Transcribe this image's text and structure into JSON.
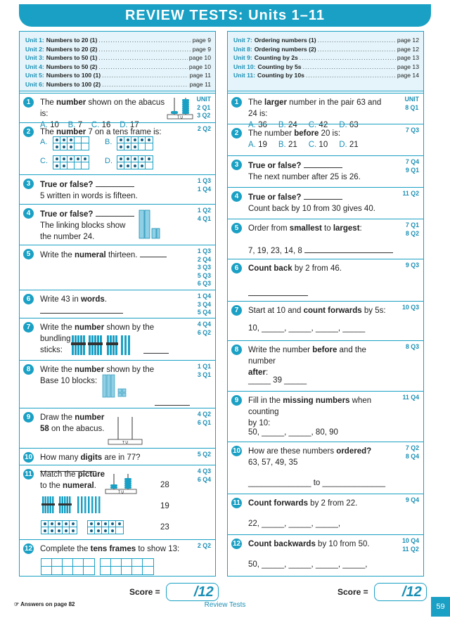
{
  "title": "REVIEW TESTS: Units 1–11",
  "toc_left": [
    {
      "unit": "Unit 1:",
      "name": "Numbers to 20 (1)",
      "page": "page 9"
    },
    {
      "unit": "Unit 2:",
      "name": "Numbers to 20 (2)",
      "page": "page 9"
    },
    {
      "unit": "Unit 3:",
      "name": "Numbers to 50 (1)",
      "page": "page 10"
    },
    {
      "unit": "Unit 4:",
      "name": "Numbers to 50 (2)",
      "page": "page 10"
    },
    {
      "unit": "Unit 5:",
      "name": "Numbers to 100 (1)",
      "page": "page 11"
    },
    {
      "unit": "Unit 6:",
      "name": "Numbers to 100 (2)",
      "page": "page 11"
    }
  ],
  "toc_right": [
    {
      "unit": "Unit 7:",
      "name": "Ordering numbers (1)",
      "page": "page 12"
    },
    {
      "unit": "Unit 8:",
      "name": "Ordering numbers (2)",
      "page": "page 12"
    },
    {
      "unit": "Unit 9:",
      "name": "Counting by 2s",
      "page": "page 13"
    },
    {
      "unit": "Unit 10:",
      "name": "Counting by 5s",
      "page": "page 13"
    },
    {
      "unit": "Unit 11:",
      "name": "Counting by 10s",
      "page": "page 14"
    }
  ],
  "left": {
    "ref_header": "UNIT",
    "q1": {
      "num": "1",
      "pre": "The ",
      "bold": "number",
      "post": " shown on the abacus is:",
      "opts": [
        "A.",
        "10",
        "B.",
        "7",
        "C.",
        "16",
        "D.",
        "17"
      ],
      "ref": [
        "2 Q1",
        "3 Q2"
      ],
      "abacus_labels": "T  U"
    },
    "q2": {
      "num": "2",
      "pre": "The ",
      "bold": "number",
      "post": " 7 on a tens frame is:",
      "labels": [
        "A.",
        "B.",
        "C.",
        "D."
      ],
      "ref": [
        "2 Q2"
      ]
    },
    "q3": {
      "num": "3",
      "bold": "True or false?",
      "line2": "5 written in words is fifteen.",
      "ref": [
        "1 Q3",
        "1 Q4"
      ]
    },
    "q4": {
      "num": "4",
      "bold": "True or false?",
      "line2": "The linking blocks show",
      "line3": "the number 24.",
      "ref": [
        "1 Q2",
        "4 Q1"
      ]
    },
    "q5": {
      "num": "5",
      "pre": "Write the ",
      "bold": "numeral",
      "post": " thirteen.",
      "ref": [
        "1 Q3",
        "2 Q4",
        "3 Q3",
        "5 Q3",
        "6 Q3"
      ]
    },
    "q6": {
      "num": "6",
      "pre": "Write 43 in ",
      "bold": "words",
      "post": ".",
      "ref": [
        "1 Q4",
        "3 Q4",
        "5 Q4"
      ]
    },
    "q7": {
      "num": "7",
      "pre": "Write the ",
      "bold": "number",
      "post": " shown by the bundling",
      "line2": "sticks:",
      "ref": [
        "4 Q4",
        "6 Q2"
      ]
    },
    "q8": {
      "num": "8",
      "pre": "Write the ",
      "bold": "number",
      "post": " shown by the",
      "line2": "Base 10 blocks:",
      "ref": [
        "1 Q1",
        "3 Q1"
      ]
    },
    "q9": {
      "num": "9",
      "pre": "Draw the ",
      "bold": "number",
      "bold2": "58",
      "post2": " on the abacus.",
      "ref": [
        "4 Q2",
        "6 Q1"
      ],
      "abacus_labels": "T  U"
    },
    "q10": {
      "num": "10",
      "pre": "How many ",
      "bold": "digits",
      "post": " are in 77?",
      "ref": [
        "5 Q2"
      ]
    },
    "q11": {
      "num": "11",
      "pre": "Match the ",
      "bold": "picture",
      "pre2": "to the ",
      "bold2": "numeral",
      "post2": ".",
      "numerals": [
        "28",
        "19",
        "23"
      ],
      "ref": [
        "4 Q3",
        "6 Q4"
      ],
      "abacus_labels": "T  U"
    },
    "q12": {
      "num": "12",
      "pre": "Complete the ",
      "bold": "tens frames",
      "post": " to show 13:",
      "ref": [
        "2 Q2"
      ]
    }
  },
  "right": {
    "ref_header": "UNIT",
    "q1": {
      "num": "1",
      "pre": "The ",
      "bold": "larger",
      "post": " number in the pair 63 and 24 is:",
      "opts": [
        "A.",
        "36",
        "B.",
        "24",
        "C.",
        "42",
        "D.",
        "63"
      ],
      "ref": [
        "8 Q1"
      ]
    },
    "q2": {
      "num": "2",
      "pre": "The number ",
      "bold": "before",
      "post": " 20 is:",
      "opts": [
        "A.",
        "19",
        "B.",
        "21",
        "C.",
        "10",
        "D.",
        "21"
      ],
      "ref": [
        "7 Q3"
      ]
    },
    "q3": {
      "num": "3",
      "bold": "True or false?",
      "line2": "The next number after 25 is 26.",
      "ref": [
        "7 Q4",
        "9 Q1"
      ]
    },
    "q4": {
      "num": "4",
      "bold": "True or false?",
      "line2": "Count back by 10 from 30 gives 40.",
      "ref": [
        "11 Q2"
      ]
    },
    "q5": {
      "num": "5",
      "pre": "Order from ",
      "bold": "smallest",
      "mid": " to ",
      "bold2": "largest",
      "post": ":",
      "line2": "7, 19, 23, 14, 8",
      "ref": [
        "7 Q1",
        "8 Q2"
      ]
    },
    "q6": {
      "num": "6",
      "bold": "Count back",
      "post": " by 2 from 46.",
      "ref": [
        "9 Q3"
      ]
    },
    "q7": {
      "num": "7",
      "pre": "Start at 10 and ",
      "bold": "count forwards",
      "post": " by 5s:",
      "line2": "10, _____, _____, _____, _____",
      "ref": [
        "10 Q3"
      ]
    },
    "q8": {
      "num": "8",
      "pre": "Write the number ",
      "bold": "before",
      "post": " and the number",
      "bold2": "after",
      "post2": ":",
      "line3": "_____ 39 _____",
      "ref": [
        "8 Q3"
      ]
    },
    "q9": {
      "num": "9",
      "pre": "Fill in the ",
      "bold": "missing numbers",
      "post": " when counting",
      "line2": "by 10:",
      "line3": "50, _____, _____, 80, 90",
      "ref": [
        "11 Q4"
      ]
    },
    "q10": {
      "num": "10",
      "pre": "How are these numbers ",
      "bold": "ordered?",
      "line2": "63, 57, 49, 35",
      "line3": "______________ to ______________",
      "ref": [
        "7 Q2",
        "8 Q4"
      ]
    },
    "q11": {
      "num": "11",
      "bold": "Count forwards",
      "post": " by 2 from 22.",
      "line2": "22, _____, _____, _____,",
      "ref": [
        "9 Q4"
      ]
    },
    "q12": {
      "num": "12",
      "bold": "Count backwards",
      "post": " by 10 from 50.",
      "line2": "50, _____, _____, _____, _____,",
      "ref": [
        "10 Q4",
        "11 Q2"
      ]
    }
  },
  "score": {
    "label": "Score =",
    "total": "/12"
  },
  "footer": {
    "answers": "Answers on page 82",
    "section": "Review Tests",
    "page": "59"
  },
  "colors": {
    "accent": "#1aa0c4",
    "panel": "#e4f4fa"
  }
}
